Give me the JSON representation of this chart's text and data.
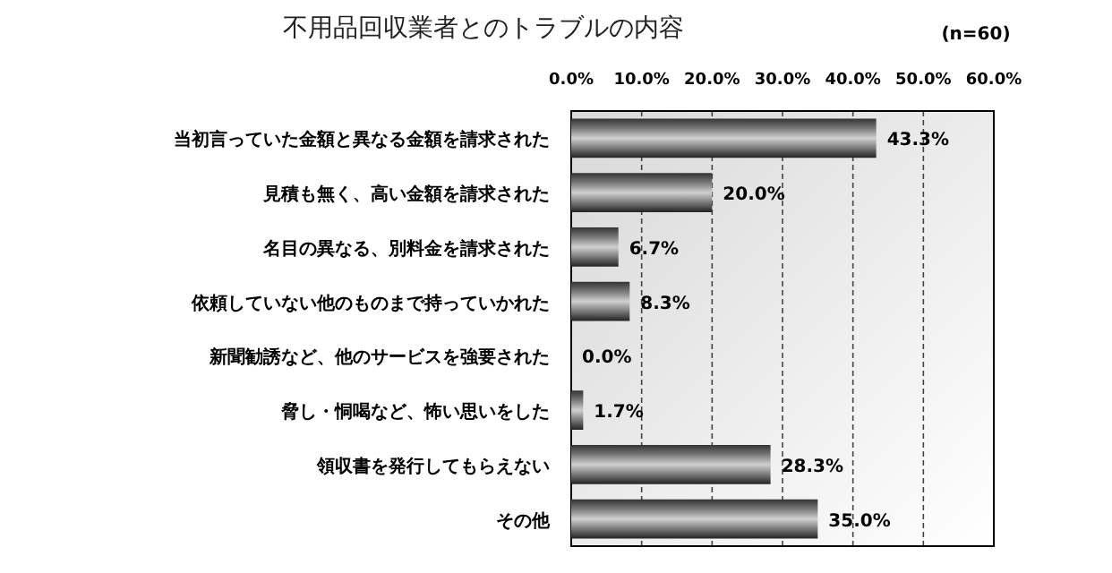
{
  "chart_data": {
    "type": "bar",
    "orientation": "horizontal",
    "title": "不用品回収業者とのトラブルの内容",
    "annotations": [
      "(n=60)"
    ],
    "categories": [
      "当初言っていた金額と異なる金額を請求された",
      "見積も無く、高い金額を請求された",
      "名目の異なる、別料金を請求された",
      "依頼していない他のものまで持っていかれた",
      "新聞勧誘など、他のサービスを強要された",
      "脅し・恫喝など、怖い思いをした",
      "領収書を発行してもらえない",
      "その他"
    ],
    "values": [
      43.3,
      20.0,
      6.7,
      8.3,
      0.0,
      1.7,
      28.3,
      35.0
    ],
    "value_labels": [
      "43.3%",
      "20.0%",
      "6.7%",
      "8.3%",
      "0.0%",
      "1.7%",
      "28.3%",
      "35.0%"
    ],
    "color": "#7a7a7a",
    "xlim": [
      0,
      60
    ],
    "xticks": [
      {
        "value": 0,
        "label": "0.0%"
      },
      {
        "value": 10,
        "label": "10.0%"
      },
      {
        "value": 20,
        "label": "20.0%"
      },
      {
        "value": 30,
        "label": "30.0%"
      },
      {
        "value": 40,
        "label": "40.0%"
      },
      {
        "value": 50,
        "label": "50.0%"
      },
      {
        "value": 60,
        "label": "60.0%"
      }
    ],
    "grid": "x"
  }
}
